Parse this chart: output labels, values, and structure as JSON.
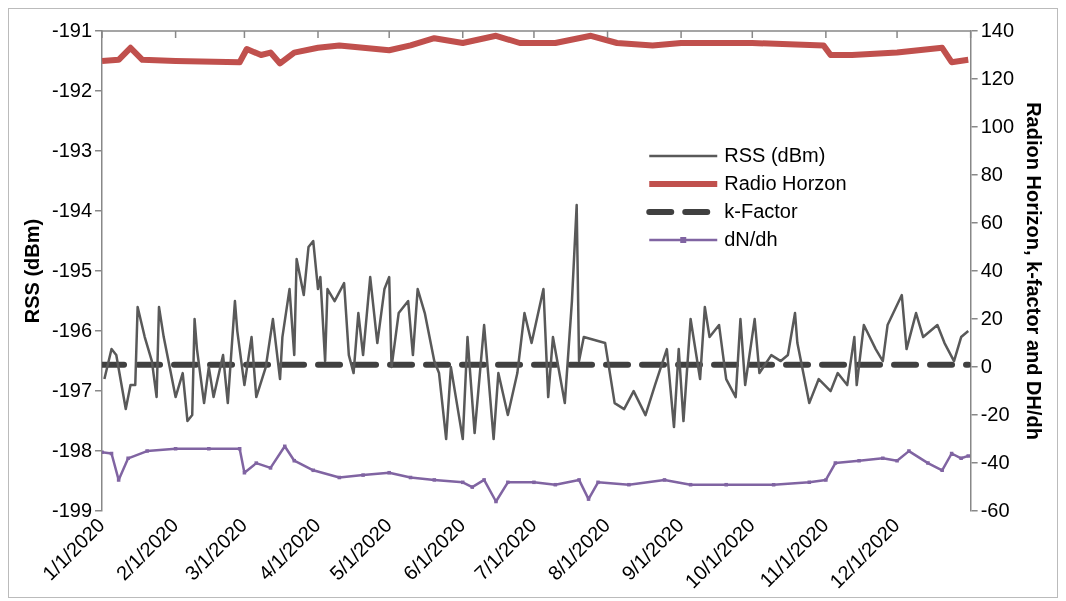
{
  "chart_data": {
    "type": "line",
    "ylabel": "RSS (dBm)",
    "y2label": "Radion Horizon, k-factor and DH/dh",
    "xlim": [
      "2020-01-01",
      "2021-01-01"
    ],
    "xticks": [
      {
        "value": "2020-01-01",
        "label": "1/1/2020"
      },
      {
        "value": "2020-02-01",
        "label": "2/1/2020"
      },
      {
        "value": "2020-03-01",
        "label": "3/1/2020"
      },
      {
        "value": "2020-04-01",
        "label": "4/1/2020"
      },
      {
        "value": "2020-05-01",
        "label": "5/1/2020"
      },
      {
        "value": "2020-06-01",
        "label": "6/1/2020"
      },
      {
        "value": "2020-07-01",
        "label": "7/1/2020"
      },
      {
        "value": "2020-08-01",
        "label": "8/1/2020"
      },
      {
        "value": "2020-09-01",
        "label": "9/1/2020"
      },
      {
        "value": "2020-10-01",
        "label": "10/1/2020"
      },
      {
        "value": "2020-11-01",
        "label": "11/1/2020"
      },
      {
        "value": "2020-12-01",
        "label": "12/1/2020"
      }
    ],
    "ylim": [
      -199,
      -191
    ],
    "yticks": [
      -199,
      -198,
      -197,
      -196,
      -195,
      -194,
      -193,
      -192,
      -191
    ],
    "y2lim": [
      -60,
      140
    ],
    "y2ticks": [
      -60,
      -40,
      -20,
      0,
      20,
      40,
      60,
      80,
      100,
      120,
      140
    ],
    "grid": false,
    "legend": "right",
    "marker": "none",
    "line_style": "solid",
    "series": [
      {
        "name": "RSS (dBm)",
        "color": "#595959",
        "x": [
          "2020-01-02",
          "2020-01-05",
          "2020-01-07",
          "2020-01-11",
          "2020-01-13",
          "2020-01-15",
          "2020-01-16",
          "2020-01-19",
          "2020-01-22",
          "2020-01-24",
          "2020-01-25",
          "2020-01-27",
          "2020-02-01",
          "2020-02-04",
          "2020-02-06",
          "2020-02-08",
          "2020-02-09",
          "2020-02-10",
          "2020-02-13",
          "2020-02-15",
          "2020-02-17",
          "2020-02-21",
          "2020-02-23",
          "2020-02-26",
          "2020-02-27",
          "2020-03-01",
          "2020-03-04",
          "2020-03-06",
          "2020-03-10",
          "2020-03-13",
          "2020-03-16",
          "2020-03-17",
          "2020-03-20",
          "2020-03-22",
          "2020-03-23",
          "2020-03-26",
          "2020-03-28",
          "2020-03-30",
          "2020-04-01",
          "2020-04-02",
          "2020-04-04",
          "2020-04-05",
          "2020-04-08",
          "2020-04-12",
          "2020-04-14",
          "2020-04-16",
          "2020-04-18",
          "2020-04-20",
          "2020-04-23",
          "2020-04-26",
          "2020-04-29",
          "2020-05-01",
          "2020-05-02",
          "2020-05-05",
          "2020-05-09",
          "2020-05-11",
          "2020-05-13",
          "2020-05-16",
          "2020-05-20",
          "2020-05-22",
          "2020-05-25",
          "2020-05-27",
          "2020-06-01",
          "2020-06-03",
          "2020-06-06",
          "2020-06-10",
          "2020-06-14",
          "2020-06-16",
          "2020-06-20",
          "2020-06-24",
          "2020-06-27",
          "2020-06-30",
          "2020-07-05",
          "2020-07-07",
          "2020-07-09",
          "2020-07-14",
          "2020-07-17",
          "2020-07-19",
          "2020-07-20",
          "2020-07-22",
          "2020-07-31",
          "2020-08-04",
          "2020-08-08",
          "2020-08-12",
          "2020-08-17",
          "2020-08-21",
          "2020-08-26",
          "2020-08-29",
          "2020-08-31",
          "2020-09-02",
          "2020-09-05",
          "2020-09-09",
          "2020-09-11",
          "2020-09-13",
          "2020-09-17",
          "2020-09-20",
          "2020-09-24",
          "2020-09-26",
          "2020-09-28",
          "2020-10-02",
          "2020-10-04",
          "2020-10-09",
          "2020-10-13",
          "2020-10-16",
          "2020-10-19",
          "2020-10-20",
          "2020-10-25",
          "2020-10-29",
          "2020-11-03",
          "2020-11-06",
          "2020-11-10",
          "2020-11-13",
          "2020-11-14",
          "2020-11-17",
          "2020-11-22",
          "2020-11-25",
          "2020-11-27",
          "2020-12-03",
          "2020-12-05",
          "2020-12-09",
          "2020-12-12",
          "2020-12-18",
          "2020-12-21",
          "2020-12-25",
          "2020-12-28",
          "2020-12-31"
        ],
        "values": [
          -196.8,
          -196.3,
          -196.4,
          -197.3,
          -196.9,
          -196.9,
          -195.6,
          -196.1,
          -196.5,
          -197.1,
          -195.6,
          -196.1,
          -197.1,
          -196.7,
          -197.5,
          -197.4,
          -195.8,
          -196.3,
          -197.2,
          -196.6,
          -197.1,
          -196.4,
          -197.2,
          -195.5,
          -196.0,
          -196.9,
          -196.1,
          -197.1,
          -196.6,
          -195.8,
          -196.8,
          -196.1,
          -195.3,
          -196.4,
          -194.8,
          -195.4,
          -194.6,
          -194.5,
          -195.3,
          -195.1,
          -196.5,
          -195.3,
          -195.5,
          -195.2,
          -196.4,
          -196.7,
          -195.7,
          -196.4,
          -195.1,
          -196.2,
          -195.3,
          -195.1,
          -196.6,
          -195.7,
          -195.5,
          -196.4,
          -195.3,
          -195.7,
          -196.5,
          -196.7,
          -197.8,
          -196.6,
          -197.8,
          -196.1,
          -197.7,
          -195.9,
          -197.8,
          -196.7,
          -197.4,
          -196.7,
          -195.7,
          -196.2,
          -195.3,
          -197.1,
          -196.1,
          -197.2,
          -195.5,
          -193.9,
          -196.5,
          -196.1,
          -196.2,
          -197.2,
          -197.3,
          -197.0,
          -197.4,
          -196.9,
          -196.3,
          -197.6,
          -196.3,
          -197.5,
          -195.8,
          -196.8,
          -195.6,
          -196.1,
          -195.9,
          -196.8,
          -197.1,
          -195.8,
          -196.9,
          -195.8,
          -196.7,
          -196.4,
          -196.5,
          -196.4,
          -195.7,
          -196.2,
          -197.2,
          -196.8,
          -197.0,
          -196.7,
          -196.9,
          -196.1,
          -196.9,
          -195.9,
          -196.3,
          -196.5,
          -195.9,
          -195.4,
          -196.3,
          -195.7,
          -196.1,
          -195.9,
          -196.2,
          -196.5,
          -196.1,
          -196.0
        ]
      },
      {
        "name": "Radio Horzon",
        "color": "#c0504d",
        "axis": "y2",
        "x": [
          "2020-01-01",
          "2020-01-08",
          "2020-01-13",
          "2020-01-18",
          "2020-02-01",
          "2020-02-28",
          "2020-03-02",
          "2020-03-08",
          "2020-03-12",
          "2020-03-16",
          "2020-03-22",
          "2020-04-01",
          "2020-04-10",
          "2020-04-20",
          "2020-05-01",
          "2020-05-10",
          "2020-05-20",
          "2020-06-01",
          "2020-06-15",
          "2020-06-25",
          "2020-07-10",
          "2020-07-25",
          "2020-08-05",
          "2020-08-20",
          "2020-09-01",
          "2020-10-01",
          "2020-10-31",
          "2020-11-03",
          "2020-11-12",
          "2020-12-01",
          "2020-12-20",
          "2020-12-24",
          "2020-12-31"
        ],
        "values": [
          127.5,
          128,
          133,
          128,
          127.5,
          127,
          132.5,
          130,
          131,
          126.5,
          131,
          133,
          134,
          133,
          132,
          134,
          137,
          135,
          138,
          135,
          135,
          138,
          135,
          134,
          135,
          135,
          134,
          130,
          130,
          131,
          133,
          127,
          128
        ]
      },
      {
        "name": "k-Factor",
        "color": "#404040",
        "axis": "y2",
        "line_style": "dashed",
        "x": [
          "2020-01-01",
          "2020-12-31"
        ],
        "values": [
          1,
          1
        ]
      },
      {
        "name": "dN/dh",
        "color": "#8064a2",
        "axis": "y2",
        "marker": "square",
        "x": [
          "2020-01-01",
          "2020-01-05",
          "2020-01-08",
          "2020-01-12",
          "2020-01-20",
          "2020-02-01",
          "2020-02-15",
          "2020-02-28",
          "2020-03-01",
          "2020-03-06",
          "2020-03-12",
          "2020-03-18",
          "2020-03-22",
          "2020-03-30",
          "2020-04-10",
          "2020-04-20",
          "2020-05-01",
          "2020-05-10",
          "2020-05-20",
          "2020-06-01",
          "2020-06-05",
          "2020-06-10",
          "2020-06-15",
          "2020-06-20",
          "2020-07-01",
          "2020-07-10",
          "2020-07-20",
          "2020-07-24",
          "2020-07-28",
          "2020-08-10",
          "2020-08-25",
          "2020-09-05",
          "2020-09-20",
          "2020-10-10",
          "2020-10-25",
          "2020-11-01",
          "2020-11-05",
          "2020-11-15",
          "2020-11-25",
          "2020-12-01",
          "2020-12-06",
          "2020-12-14",
          "2020-12-20",
          "2020-12-24",
          "2020-12-28",
          "2020-12-31"
        ],
        "values": [
          -35.5,
          -36,
          -47,
          -38,
          -35,
          -34,
          -34,
          -34,
          -44,
          -40,
          -42,
          -33,
          -39,
          -43,
          -46,
          -45,
          -44,
          -46,
          -47,
          -48,
          -50,
          -47,
          -56,
          -48,
          -48,
          -49,
          -47,
          -55,
          -48,
          -49,
          -47,
          -49,
          -49,
          -49,
          -48,
          -47,
          -40,
          -39,
          -38,
          -39,
          -35,
          -40,
          -43,
          -36,
          -38,
          -37
        ]
      }
    ]
  }
}
